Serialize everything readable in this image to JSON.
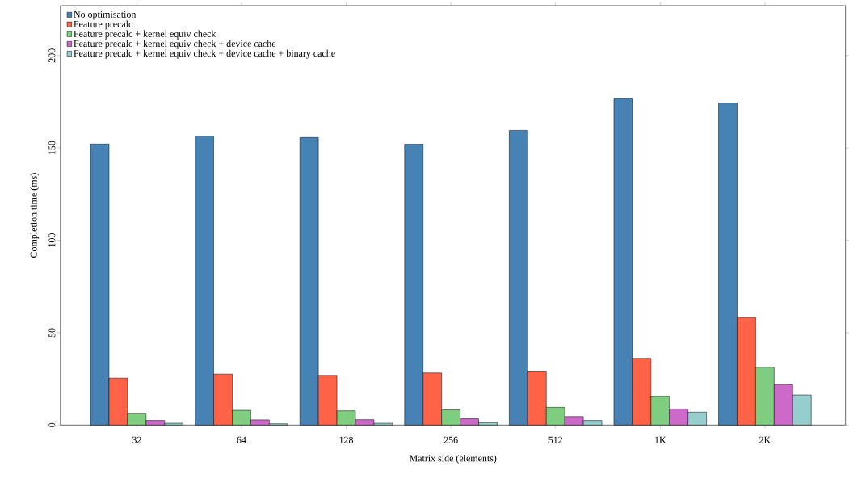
{
  "chart_data": {
    "type": "bar",
    "xlabel": "Matrix side (elements)",
    "ylabel": "Completion time (ms)",
    "categories": [
      "32",
      "64",
      "128",
      "256",
      "512",
      "1K",
      "2K"
    ],
    "series": [
      {
        "name": "No optimisation",
        "color": "#4682b4",
        "values": [
          152.1,
          156.4,
          155.6,
          152.0,
          159.5,
          176.9,
          174.3
        ]
      },
      {
        "name": "Feature precalc",
        "color": "#ff6347",
        "values": [
          25.4,
          27.6,
          26.9,
          28.2,
          29.2,
          36.1,
          58.3
        ]
      },
      {
        "name": "Feature precalc + kernel equiv check",
        "color": "#7fcd7f",
        "values": [
          6.4,
          8.0,
          7.7,
          8.2,
          9.6,
          15.6,
          31.3
        ]
      },
      {
        "name": "Feature precalc + kernel equiv check + device cache",
        "color": "#cd69c9",
        "values": [
          2.5,
          2.8,
          2.9,
          3.4,
          4.6,
          8.7,
          21.9
        ]
      },
      {
        "name": "Feature precalc + kernel equiv check + device cache + binary cache",
        "color": "#96cdcd",
        "values": [
          1.0,
          0.7,
          1.0,
          1.3,
          2.5,
          7.0,
          16.3
        ]
      }
    ],
    "ylim": [
      0,
      227
    ],
    "yticks": [
      0,
      50,
      100,
      150,
      200
    ],
    "legend": "top left"
  }
}
